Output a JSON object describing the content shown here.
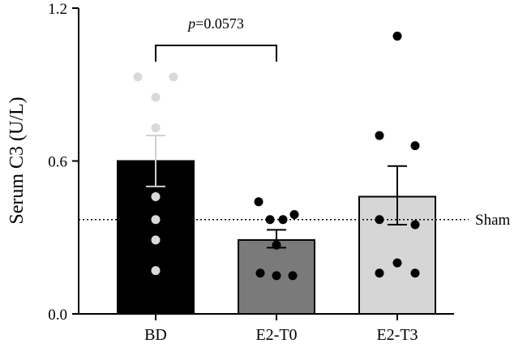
{
  "chart_data": {
    "type": "bar",
    "ylabel": "Serum C3 (U/L)",
    "ylim": [
      0,
      1.2
    ],
    "yticks": [
      "0.0",
      "0.6",
      "1.2"
    ],
    "categories": [
      "BD",
      "E2-T0",
      "E2-T3"
    ],
    "series": [
      {
        "values": [
          0.6,
          0.29,
          0.46
        ],
        "error_upper": [
          0.7,
          0.33,
          0.58
        ],
        "error_lower": [
          0.5,
          0.26,
          0.35
        ],
        "bar_colors": [
          "#000000",
          "#7a7a7a",
          "#d6d6d6"
        ],
        "point_colors": [
          "#d9d9d9",
          "#000000",
          "#000000"
        ],
        "points": [
          [
            0.93,
            0.93,
            0.85,
            0.73,
            0.46,
            0.37,
            0.29,
            0.17
          ],
          [
            0.44,
            0.39,
            0.37,
            0.37,
            0.27,
            0.16,
            0.15,
            0.15
          ],
          [
            1.09,
            0.7,
            0.66,
            0.37,
            0.35,
            0.2,
            0.16,
            0.16
          ]
        ]
      }
    ],
    "reference_line": {
      "label": "Sham",
      "value": 0.37
    },
    "annotation": {
      "p_italic": "p",
      "p_rest": "=0.0573",
      "between": [
        "BD",
        "E2-T0"
      ]
    }
  }
}
